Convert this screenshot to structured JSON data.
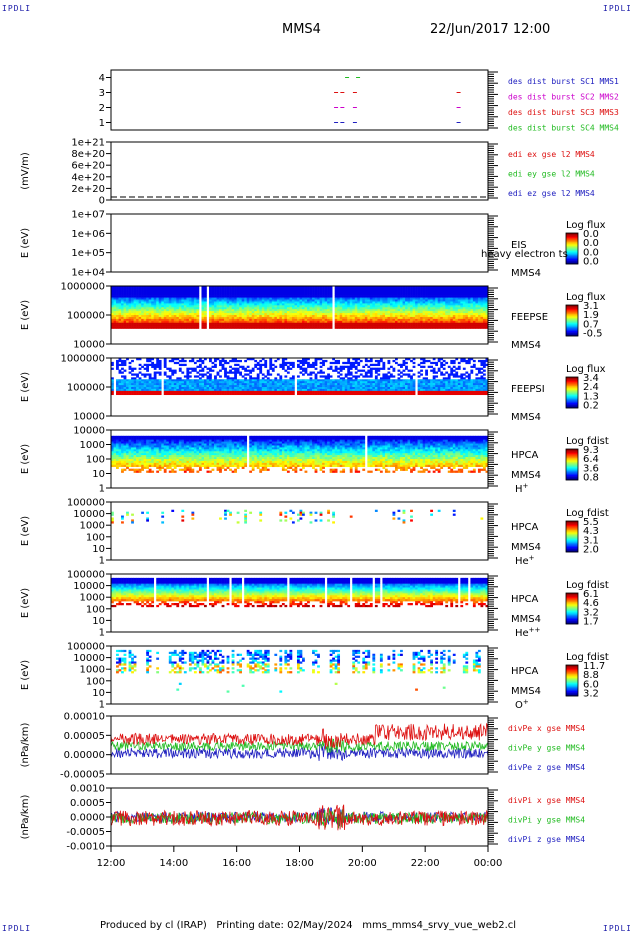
{
  "corner_label": "IPDLI",
  "header": {
    "spacecraft": "MMS4",
    "date": "22/Jun/2017 12:00"
  },
  "footer": {
    "produced_by": "Produced by cl (IRAP)",
    "printing_date": "Printing date: 02/May/2024",
    "program": "mms_mms4_srvy_vue_web2.cl"
  },
  "chart_data": {
    "type": "multi-panel time series",
    "time_axis": {
      "start": "12:00",
      "end": "00:00",
      "tick_labels": [
        "12:00",
        "14:00",
        "16:00",
        "18:00",
        "20:00",
        "22:00",
        "00:00"
      ]
    },
    "panels": [
      {
        "id": "burst",
        "type": "scatter",
        "yticks": [
          "1",
          "2",
          "3",
          "4"
        ],
        "ylim": [
          0.5,
          4.5
        ],
        "legend": [
          {
            "text": "des dist burst SC1 MMS1",
            "color": "#2020c0"
          },
          {
            "text": "des dist burst SC2 MMS2",
            "color": "#cc00cc"
          },
          {
            "text": "des dist burst SC3 MMS3",
            "color": "#dd1010"
          },
          {
            "text": "des dist burst SC4 MMS4",
            "color": "#22bb22"
          }
        ],
        "intervals": [
          {
            "sc": 1,
            "x": [
              19.1,
              19.3,
              19.7,
              23.0
            ]
          },
          {
            "sc": 2,
            "x": [
              19.1,
              19.3,
              19.7,
              23.0
            ]
          },
          {
            "sc": 3,
            "x": [
              19.1,
              19.3,
              19.7,
              23.0
            ]
          },
          {
            "sc": 4,
            "x": [
              19.45,
              19.8
            ]
          }
        ]
      },
      {
        "id": "edi",
        "type": "line",
        "ylabel": "(mV/m)",
        "yticks": [
          "0",
          "2e+20",
          "4e+20",
          "6e+20",
          "8e+20",
          "1e+21"
        ],
        "ylim": [
          0,
          1.1
        ],
        "legend": [
          {
            "text": "edi ex gse l2 MMS4",
            "color": "#dd1010"
          },
          {
            "text": "edi ey gse l2 MMS4",
            "color": "#22bb22"
          },
          {
            "text": "edi ez gse l2 MMS4",
            "color": "#2020c0"
          }
        ]
      },
      {
        "id": "eis",
        "type": "heatmap",
        "ylabel": "E (eV)",
        "yticks": [
          "1e+04",
          "1e+05",
          "1e+06",
          "1e+07"
        ],
        "instrument": "EIS",
        "instrument_extra": "heavy electron ts",
        "spacecraft": "MMS4",
        "cbar_title": "Log flux",
        "cbar_ticks": [
          "0.0",
          "0.0",
          "0.0",
          "0.0"
        ],
        "fill": 0
      },
      {
        "id": "feepse",
        "type": "heatmap",
        "ylabel": "E (eV)",
        "yticks": [
          "10000",
          "100000",
          "1000000"
        ],
        "instrument": "FEEPSE",
        "spacecraft": "MMS4",
        "cbar_title": "Log flux",
        "cbar_ticks": [
          "3.1",
          "1.9",
          "0.7",
          "-0.5"
        ],
        "fill": 0.97
      },
      {
        "id": "feepsi",
        "type": "heatmap",
        "ylabel": "E (eV)",
        "yticks": [
          "10000",
          "100000",
          "1000000"
        ],
        "instrument": "FEEPSI",
        "spacecraft": "MMS4",
        "cbar_title": "Log flux",
        "cbar_ticks": [
          "3.4",
          "2.4",
          "1.3",
          "0.2"
        ],
        "fill": 0.97
      },
      {
        "id": "hpca_h",
        "type": "heatmap",
        "ylabel": "E (eV)",
        "yticks": [
          "1",
          "10",
          "100",
          "1000",
          "10000"
        ],
        "instrument": "HPCA",
        "spacecraft": "MMS4",
        "species": "H",
        "species_sup": "+",
        "cbar_title": "Log fdist",
        "cbar_ticks": [
          "9.3",
          "6.4",
          "3.6",
          "0.8"
        ],
        "fill": 0.98
      },
      {
        "id": "hpca_he",
        "type": "heatmap",
        "ylabel": "E (eV)",
        "yticks": [
          "1",
          "10",
          "100",
          "1000",
          "10000",
          "100000"
        ],
        "instrument": "HPCA",
        "spacecraft": "MMS4",
        "species": "He",
        "species_sup": "+",
        "cbar_title": "Log fdist",
        "cbar_ticks": [
          "5.5",
          "4.3",
          "3.1",
          "2.0"
        ],
        "fill": 0.3
      },
      {
        "id": "hpca_hepp",
        "type": "heatmap",
        "ylabel": "E (eV)",
        "yticks": [
          "1",
          "10",
          "100",
          "1000",
          "10000",
          "100000"
        ],
        "instrument": "HPCA",
        "spacecraft": "MMS4",
        "species": "He",
        "species_sup": "++",
        "cbar_title": "Log fdist",
        "cbar_ticks": [
          "6.1",
          "4.6",
          "3.2",
          "1.7"
        ],
        "fill": 0.95
      },
      {
        "id": "hpca_o",
        "type": "heatmap",
        "ylabel": "E (eV)",
        "yticks": [
          "1",
          "10",
          "100",
          "1000",
          "10000",
          "100000"
        ],
        "instrument": "HPCA",
        "spacecraft": "MMS4",
        "species": "O",
        "species_sup": "+",
        "cbar_title": "Log fdist",
        "cbar_ticks": [
          "11.7",
          "8.8",
          "6.0",
          "3.2"
        ],
        "fill": 0.55
      },
      {
        "id": "divpe",
        "type": "line",
        "ylabel": "(nPa/km)",
        "yticks": [
          "-0.00005",
          "0.00000",
          "0.00005",
          "0.00010"
        ],
        "ylim": [
          -0.0001,
          0.00013
        ],
        "legend": [
          {
            "text": "divPe x gse MMS4",
            "color": "#dd1010"
          },
          {
            "text": "divPe y gse MMS4",
            "color": "#22bb22"
          },
          {
            "text": "divPe z gse MMS4",
            "color": "#2020c0"
          }
        ]
      },
      {
        "id": "divpi",
        "type": "line",
        "ylabel": "(nPa/km)",
        "yticks": [
          "-0.0010",
          "-0.0005",
          "0.0000",
          "0.0005",
          "0.0010"
        ],
        "ylim": [
          -0.0012,
          0.0012
        ],
        "legend": [
          {
            "text": "divPi x gse MMS4",
            "color": "#dd1010"
          },
          {
            "text": "divPi y gse MMS4",
            "color": "#22bb22"
          },
          {
            "text": "divPi z gse MMS4",
            "color": "#2020c0"
          }
        ]
      }
    ]
  }
}
